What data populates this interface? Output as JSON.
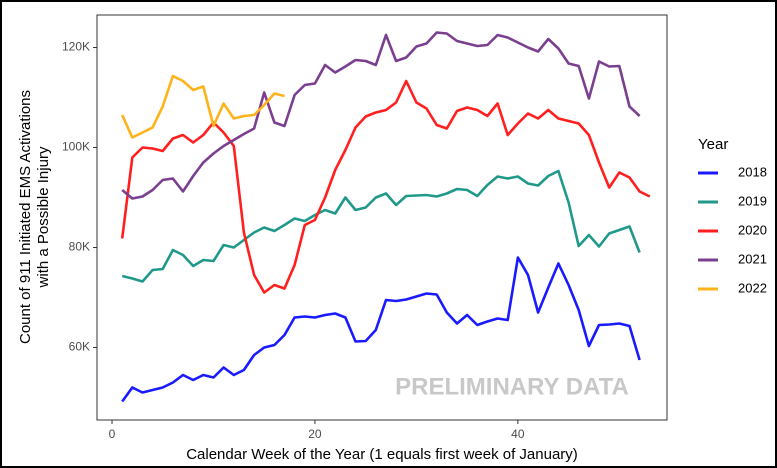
{
  "chart_data": {
    "type": "line",
    "x_label": "Calendar Week of the Year (1 equals first week of January)",
    "y_label": [
      "Count of 911 Initiated EMS Activations",
      "with a Possible Injury"
    ],
    "legend_title": "Year",
    "watermark": "PRELIMINARY DATA",
    "x": [
      1,
      2,
      3,
      4,
      5,
      6,
      7,
      8,
      9,
      10,
      11,
      12,
      13,
      14,
      15,
      16,
      17,
      18,
      19,
      20,
      21,
      22,
      23,
      24,
      25,
      26,
      27,
      28,
      29,
      30,
      31,
      32,
      33,
      34,
      35,
      36,
      37,
      38,
      39,
      40,
      41,
      42,
      43,
      44,
      45,
      46,
      47,
      48,
      49,
      50,
      51,
      52,
      53
    ],
    "xlim": [
      -1.48,
      54.7
    ],
    "xticks": [
      0,
      20,
      40
    ],
    "ylim": [
      45500,
      126500
    ],
    "yticks": [
      {
        "value": 60000,
        "label": "60K"
      },
      {
        "value": 80000,
        "label": "80K"
      },
      {
        "value": 100000,
        "label": "100K"
      },
      {
        "value": 120000,
        "label": "120K"
      }
    ],
    "grid": false,
    "series": [
      {
        "name": "2018",
        "color": "#1a1aff",
        "values": [
          49200,
          52000,
          51000,
          51500,
          52000,
          53000,
          54500,
          53500,
          54500,
          54000,
          56000,
          54500,
          55500,
          58500,
          60000,
          60500,
          62500,
          66000,
          66200,
          66000,
          66500,
          66800,
          66000,
          61200,
          61300,
          63500,
          69500,
          69300,
          69600,
          70200,
          70800,
          70600,
          67000,
          64800,
          66500,
          64500,
          65200,
          65800,
          65500,
          78000,
          74500,
          67000,
          72000,
          76800,
          72500,
          67500,
          60300,
          64500,
          64600,
          64800,
          64300,
          57500,
          null
        ]
      },
      {
        "name": "2019",
        "color": "#21998a",
        "values": [
          74300,
          73800,
          73200,
          75500,
          75700,
          79500,
          78500,
          76300,
          77500,
          77300,
          80500,
          80000,
          81500,
          83000,
          84000,
          83300,
          84500,
          85800,
          85300,
          86500,
          87500,
          86800,
          90000,
          87500,
          88000,
          90000,
          90800,
          88500,
          90300,
          90400,
          90500,
          90200,
          90800,
          91700,
          91500,
          90300,
          92500,
          94200,
          93800,
          94200,
          92800,
          92400,
          94300,
          95300,
          89000,
          80300,
          82500,
          80200,
          82800,
          83500,
          84200,
          79000,
          null
        ]
      },
      {
        "name": "2020",
        "color": "#ff1f1f",
        "values": [
          81800,
          98000,
          100000,
          99800,
          99300,
          101800,
          102500,
          101000,
          102500,
          105000,
          103000,
          100300,
          83000,
          74500,
          71000,
          72500,
          71800,
          76500,
          84500,
          85500,
          90000,
          95500,
          99500,
          104000,
          106200,
          107000,
          107500,
          109000,
          113300,
          109000,
          107800,
          104500,
          103800,
          107300,
          108000,
          107500,
          106300,
          108800,
          102500,
          104800,
          106800,
          105800,
          107500,
          105800,
          105300,
          104800,
          102500,
          97000,
          92000,
          95000,
          94000,
          91200,
          90200
        ]
      },
      {
        "name": "2021",
        "color": "#7b3f8f",
        "values": [
          91500,
          89800,
          90200,
          91500,
          93500,
          93800,
          91200,
          94300,
          97000,
          98800,
          100300,
          101500,
          102700,
          103800,
          111000,
          105000,
          104300,
          110500,
          112500,
          112800,
          116500,
          115000,
          116200,
          117500,
          117300,
          116500,
          122500,
          117300,
          118000,
          120200,
          120800,
          123000,
          122800,
          121300,
          120800,
          120300,
          120500,
          122500,
          122000,
          121000,
          120000,
          119200,
          121700,
          119800,
          116800,
          116300,
          109800,
          117200,
          116200,
          116300,
          108200,
          106300,
          null
        ]
      },
      {
        "name": "2022",
        "color": "#ffb31a",
        "values": [
          106500,
          102000,
          103000,
          104000,
          108200,
          114300,
          113300,
          111500,
          112200,
          104300,
          108800,
          105800,
          106300,
          106500,
          108500,
          110800,
          110300,
          null,
          null,
          null,
          null,
          null,
          null,
          null,
          null,
          null,
          null,
          null,
          null,
          null,
          null,
          null,
          null,
          null,
          null,
          null,
          null,
          null,
          null,
          null,
          null,
          null,
          null,
          null,
          null,
          null,
          null,
          null,
          null,
          null,
          null,
          null,
          null
        ]
      }
    ]
  }
}
